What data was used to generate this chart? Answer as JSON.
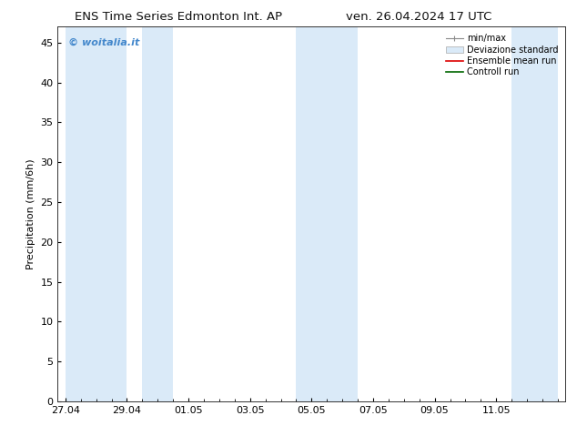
{
  "title_left": "ENS Time Series Edmonton Int. AP",
  "title_right": "ven. 26.04.2024 17 UTC",
  "ylabel": "Precipitation (mm/6h)",
  "watermark": "© woitalia.it",
  "watermark_color": "#4488cc",
  "ylim": [
    0,
    47
  ],
  "yticks": [
    0,
    5,
    10,
    15,
    20,
    25,
    30,
    35,
    40,
    45
  ],
  "background_color": "#ffffff",
  "plot_bg_color": "#ffffff",
  "shaded_color": "#daeaf8",
  "shaded_regions": [
    {
      "x_start": 0.0,
      "x_end": 2.0
    },
    {
      "x_start": 2.5,
      "x_end": 3.5
    },
    {
      "x_start": 7.5,
      "x_end": 9.5
    },
    {
      "x_start": 14.5,
      "x_end": 16.0
    }
  ],
  "x_tick_labels": [
    "27.04",
    "29.04",
    "01.05",
    "03.05",
    "05.05",
    "07.05",
    "09.05",
    "11.05"
  ],
  "x_tick_positions": [
    0,
    2,
    4,
    6,
    8,
    10,
    12,
    14
  ],
  "x_lim": [
    -0.25,
    16.25
  ],
  "legend_labels": [
    "min/max",
    "Deviazione standard",
    "Ensemble mean run",
    "Controll run"
  ],
  "title_fontsize": 9.5,
  "axis_fontsize": 8,
  "tick_fontsize": 8
}
